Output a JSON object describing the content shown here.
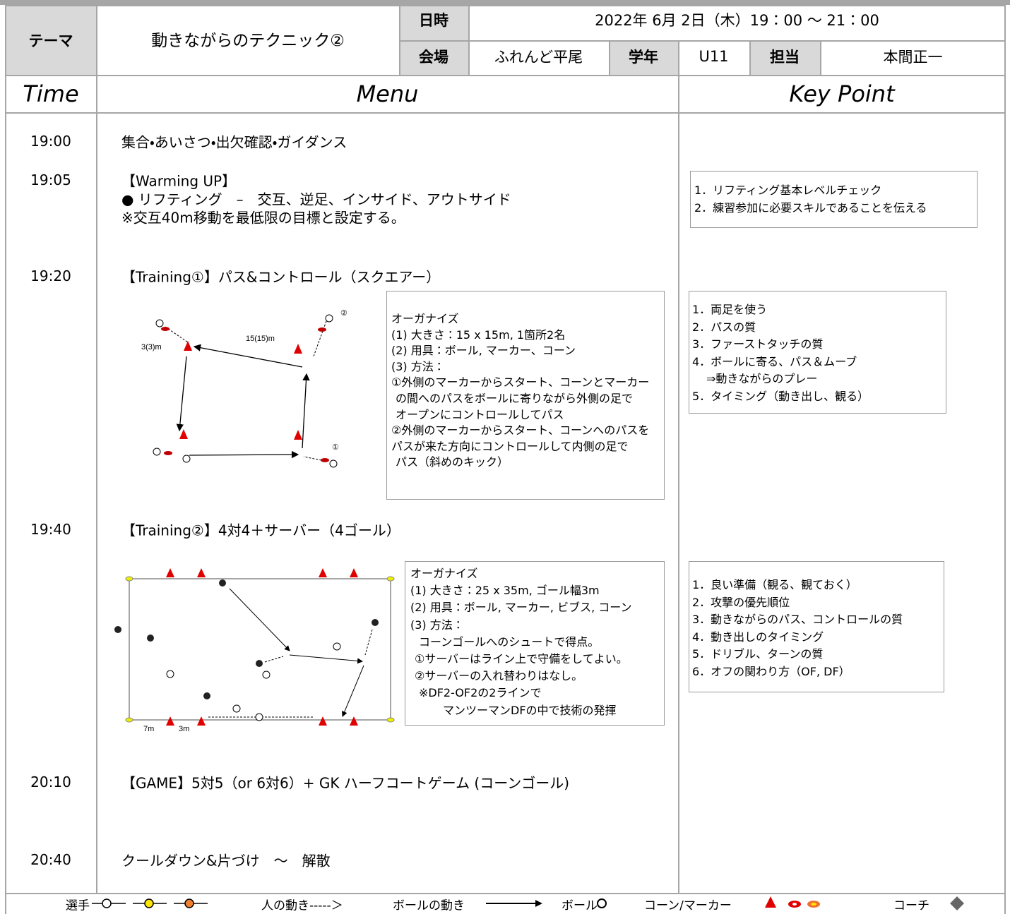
{
  "header": {
    "theme_label": "テーマ",
    "theme": "動きながらのテクニック②",
    "date_label": "日時",
    "date": "2022年 6月 2日（木）19：00 ～ 21：00",
    "venue_label": "会場",
    "venue": "ふれんど平尾",
    "grade_label": "学年",
    "grade": "U11",
    "coach_label": "担当",
    "coach": "本間正一"
  },
  "columns": {
    "time": "Time",
    "menu": "Menu",
    "key_point": "Key Point"
  },
  "schedule": [
    {
      "time": "19:00",
      "lines": [
        "集合・あいさつ・出欠確認・ガイダンス"
      ]
    },
    {
      "time": "19:05",
      "lines": [
        "【Warming UP】",
        "● リフティング　–　交互、逆足、インサイド、アウトサイド",
        "※交互40m移動を最低限の目標と設定する。"
      ],
      "key_points": [
        "1．リフティング基本レベルチェック",
        "2．練習参加に必要スキルであることを伝える"
      ]
    },
    {
      "time": "19:20",
      "lines": [
        "【Training①】パス&コントロール（スクエアー）"
      ],
      "organize": [
        "オーガナイズ",
        "(1) 大きさ：15 x 15m, 1箇所2名",
        "(2) 用具：ボール, マーカー、コーン",
        "(3) 方法：",
        "①外側のマーカーからスタート、コーンとマーカー",
        "の間へのパスをボールに寄りながら外側の足で",
        "オープンにコントロールしてパス",
        "②外側のマーカーからスタート、コーンへのパスを",
        "パスが来た方向にコントロールして内側の足で",
        "パス（斜めのキック）"
      ],
      "diagram_labels": [
        "3(3)m",
        "15(15)m",
        "②",
        "①"
      ],
      "key_points": [
        "1．両足を使う",
        "2．パスの質",
        "3．ファーストタッチの質",
        "4．ボールに寄る、パス＆ムーブ",
        "⇒動きながらのプレー",
        "5．タイミング（動き出し、観る）"
      ]
    },
    {
      "time": "19:40",
      "lines": [
        "【Training②】4対4＋サーバー（4ゴール）"
      ],
      "organize": [
        "オーガナイズ",
        "(1) 大きさ：25 x 35m, ゴール幅3m",
        "(2) 用具：ボール, マーカー, ビブス, コーン",
        "(3) 方法：",
        "コーンゴールへのシュートで得点。",
        "①サーバーはライン上で守備をしてよい。",
        "②サーバーの入れ替わりはなし。",
        "※DF2-OF2の2ラインで",
        "マンツーマンDFの中で技術の発揮"
      ],
      "diagram_labels": [
        "7m",
        "3m"
      ],
      "key_points": [
        "1．良い準備（観る、観ておく）",
        "2．攻撃の優先順位",
        "3．動きながらのパス、コントロールの質",
        "4．動き出しのタイミング",
        "5．ドリブル、ターンの質",
        "6．オフの関わり方（OF, DF）"
      ]
    },
    {
      "time": "20:10",
      "lines": [
        "【GAME】5対5（or 6対6）+ GK ハーフコートゲーム (コーンゴール)"
      ]
    },
    {
      "time": "20:40",
      "lines": [
        "クールダウン&片づけ　～　解散"
      ]
    }
  ],
  "legend": {
    "player": "選手",
    "person_move": "人の動き-----＞",
    "ball_move": "ボールの動き",
    "ball": "ボール",
    "cone_marker": "コーン/マーカー",
    "coach": "コーチ"
  }
}
